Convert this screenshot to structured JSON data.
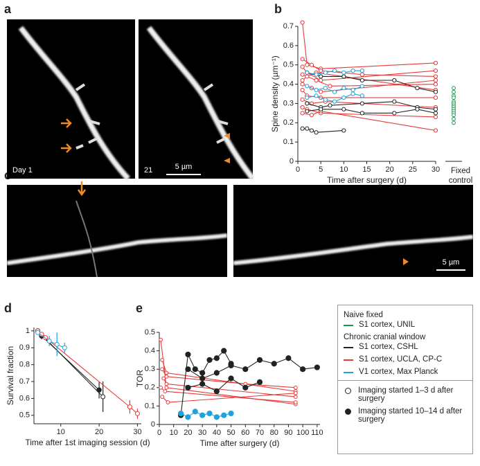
{
  "figure": {
    "panel_letters": [
      "a",
      "b",
      "c",
      "d",
      "e"
    ],
    "panel_a": {
      "left_label": "Day 1",
      "right_label": "21",
      "scale_bar": "5 µm"
    },
    "panel_c": {
      "scale_bar": "5 µm"
    },
    "legend": {
      "group_1": "Naive fixed",
      "entry_1": "S1 cortex, UNIL",
      "group_2": "Chronic cranial window",
      "entry_2": "S1 cortex, CSHL",
      "entry_3": "S1 cortex, UCLA, CP-C",
      "entry_4": "V1 cortex, Max Planck",
      "open_marker": "Imaging started 1–3 d after surgery",
      "filled_marker": "Imaging started 10–14 d after surgery",
      "colors": [
        "#1a9850",
        "#222222",
        "#e8393a",
        "#1fa3d9"
      ]
    }
  },
  "chart_data": [
    {
      "type": "line",
      "xlabel": "Time after surgery (d)",
      "ylabel": "Spine density (µm⁻¹)",
      "xlim": [
        0,
        30
      ],
      "ylim": [
        0,
        0.7
      ],
      "xticks": [
        0,
        5,
        10,
        15,
        20,
        25,
        30
      ],
      "yticks": [
        0,
        0.1,
        0.2,
        0.3,
        0.4,
        0.5,
        0.6,
        0.7
      ],
      "series": [
        {
          "color": "#e8393a",
          "filled": false,
          "x": [
            1,
            2,
            5,
            30
          ],
          "values": [
            0.72,
            0.5,
            0.48,
            0.51
          ]
        },
        {
          "color": "#e8393a",
          "filled": false,
          "x": [
            1,
            3,
            5,
            14,
            30
          ],
          "values": [
            0.53,
            0.5,
            0.47,
            0.45,
            0.44
          ]
        },
        {
          "color": "#e8393a",
          "filled": false,
          "x": [
            1,
            2,
            5,
            30
          ],
          "values": [
            0.49,
            0.46,
            0.42,
            0.47
          ]
        },
        {
          "color": "#e8393a",
          "filled": false,
          "x": [
            1,
            4,
            7,
            30
          ],
          "values": [
            0.45,
            0.42,
            0.39,
            0.4
          ]
        },
        {
          "color": "#e8393a",
          "filled": false,
          "x": [
            1,
            3,
            5,
            30
          ],
          "values": [
            0.4,
            0.38,
            0.36,
            0.42
          ]
        },
        {
          "color": "#e8393a",
          "filled": false,
          "x": [
            1,
            2,
            5,
            30
          ],
          "values": [
            0.37,
            0.34,
            0.33,
            0.33
          ]
        },
        {
          "color": "#e8393a",
          "filled": false,
          "x": [
            1,
            3,
            6,
            30
          ],
          "values": [
            0.32,
            0.3,
            0.31,
            0.28
          ]
        },
        {
          "color": "#e8393a",
          "filled": false,
          "x": [
            1,
            2,
            5,
            30
          ],
          "values": [
            0.28,
            0.27,
            0.25,
            0.23
          ]
        },
        {
          "color": "#e8393a",
          "filled": false,
          "x": [
            1,
            3,
            5,
            30
          ],
          "values": [
            0.25,
            0.24,
            0.26,
            0.16
          ]
        },
        {
          "color": "#e8393a",
          "filled": false,
          "x": [
            1,
            2,
            4,
            30
          ],
          "values": [
            0.42,
            0.44,
            0.46,
            0.37
          ]
        },
        {
          "color": "#222222",
          "filled": false,
          "x": [
            1,
            2,
            3,
            4,
            10
          ],
          "values": [
            0.17,
            0.17,
            0.16,
            0.15,
            0.16
          ]
        },
        {
          "color": "#222222",
          "filled": false,
          "x": [
            2,
            5,
            10,
            14,
            21,
            26,
            30
          ],
          "values": [
            0.46,
            0.44,
            0.44,
            0.42,
            0.42,
            0.38,
            0.36
          ]
        },
        {
          "color": "#222222",
          "filled": false,
          "x": [
            2,
            5,
            7,
            14,
            21,
            26,
            30
          ],
          "values": [
            0.3,
            0.28,
            0.29,
            0.3,
            0.31,
            0.28,
            0.27
          ]
        },
        {
          "color": "#222222",
          "filled": false,
          "x": [
            2,
            5,
            10,
            14,
            21,
            26,
            30
          ],
          "values": [
            0.26,
            0.27,
            0.27,
            0.25,
            0.25,
            0.27,
            0.25
          ]
        },
        {
          "color": "#1fa3d9",
          "filled": false,
          "x": [
            2,
            4,
            6,
            8,
            10,
            12,
            14
          ],
          "values": [
            0.46,
            0.45,
            0.46,
            0.47,
            0.46,
            0.47,
            0.47
          ]
        },
        {
          "color": "#1fa3d9",
          "filled": false,
          "x": [
            2,
            4,
            6,
            8,
            10,
            12,
            14
          ],
          "values": [
            0.39,
            0.37,
            0.38,
            0.36,
            0.38,
            0.37,
            0.39
          ]
        },
        {
          "color": "#1fa3d9",
          "filled": false,
          "x": [
            2,
            4,
            6,
            8,
            10,
            12,
            14
          ],
          "values": [
            0.33,
            0.34,
            0.32,
            0.31,
            0.33,
            0.35,
            0.34
          ]
        }
      ],
      "control": {
        "label": "Fixed control",
        "color": "#1a9850",
        "values": [
          0.38,
          0.36,
          0.34,
          0.33,
          0.31,
          0.3,
          0.29,
          0.28,
          0.27,
          0.26,
          0.25,
          0.24,
          0.22,
          0.2
        ]
      }
    },
    {
      "type": "line",
      "xlabel": "Time after 1st imaging session (d)",
      "ylabel": "Survival fraction",
      "xlim": [
        3,
        31
      ],
      "ylim": [
        0.45,
        1.02
      ],
      "xticks": [
        10,
        20,
        30
      ],
      "yticks": [
        0.5,
        0.6,
        0.7,
        0.8,
        0.9,
        1
      ],
      "series": [
        {
          "color": "#222222",
          "filled": true,
          "x": [
            4,
            5,
            20
          ],
          "values": [
            1,
            0.97,
            0.65
          ],
          "errors": [
            0.01,
            0.02,
            0.05
          ]
        },
        {
          "color": "#222222",
          "filled": false,
          "x": [
            4,
            21
          ],
          "values": [
            1,
            0.61
          ],
          "errors": [
            0.01,
            0.09
          ]
        },
        {
          "color": "#e8393a",
          "filled": false,
          "x": [
            4,
            5,
            6,
            28,
            30
          ],
          "values": [
            1,
            0.98,
            0.96,
            0.55,
            0.51
          ],
          "errors": [
            0.01,
            0.01,
            0.01,
            0.04,
            0.03
          ]
        },
        {
          "color": "#1fa3d9",
          "filled": false,
          "x": [
            4,
            7,
            9,
            11
          ],
          "values": [
            0.99,
            0.94,
            0.92,
            0.9
          ],
          "errors": [
            0.01,
            0.03,
            0.07,
            0.03
          ]
        }
      ]
    },
    {
      "type": "line",
      "xlabel": "Time after surgery (d)",
      "ylabel": "TOR",
      "xlim": [
        0,
        112
      ],
      "ylim": [
        0,
        0.5
      ],
      "xticks": [
        0,
        10,
        20,
        30,
        40,
        50,
        60,
        70,
        80,
        90,
        100,
        110
      ],
      "yticks": [
        0,
        0.1,
        0.2,
        0.3,
        0.4,
        0.5
      ],
      "series": [
        {
          "color": "#e8393a",
          "filled": false,
          "x": [
            1,
            5,
            95
          ],
          "values": [
            0.46,
            0.2,
            0.11
          ]
        },
        {
          "color": "#e8393a",
          "filled": false,
          "x": [
            2,
            5,
            95
          ],
          "values": [
            0.35,
            0.28,
            0.18
          ]
        },
        {
          "color": "#e8393a",
          "filled": false,
          "x": [
            3,
            5,
            95
          ],
          "values": [
            0.25,
            0.22,
            0.15
          ]
        },
        {
          "color": "#e8393a",
          "filled": false,
          "x": [
            1,
            4,
            95
          ],
          "values": [
            0.2,
            0.18,
            0.12
          ]
        },
        {
          "color": "#e8393a",
          "filled": false,
          "x": [
            2,
            6,
            95
          ],
          "values": [
            0.15,
            0.12,
            0.17
          ]
        },
        {
          "color": "#e8393a",
          "filled": false,
          "x": [
            2,
            5,
            60,
            95
          ],
          "values": [
            0.3,
            0.26,
            0.22,
            0.2
          ]
        },
        {
          "color": "#222222",
          "filled": true,
          "x": [
            15,
            20,
            25,
            30,
            35,
            40,
            45,
            50
          ],
          "values": [
            0.05,
            0.38,
            0.3,
            0.28,
            0.35,
            0.36,
            0.4,
            0.33
          ]
        },
        {
          "color": "#222222",
          "filled": true,
          "x": [
            20,
            30,
            40,
            50,
            60,
            70,
            80,
            90,
            100,
            110
          ],
          "values": [
            0.3,
            0.25,
            0.28,
            0.32,
            0.3,
            0.35,
            0.33,
            0.36,
            0.3,
            0.31
          ]
        },
        {
          "color": "#222222",
          "filled": true,
          "x": [
            20,
            30,
            40,
            50,
            60,
            70
          ],
          "values": [
            0.2,
            0.22,
            0.18,
            0.25,
            0.2,
            0.23
          ]
        },
        {
          "color": "#1fa3d9",
          "filled": true,
          "x": [
            15,
            20,
            25,
            30,
            35,
            40,
            45,
            50
          ],
          "values": [
            0.06,
            0.04,
            0.07,
            0.05,
            0.06,
            0.04,
            0.05,
            0.06
          ]
        }
      ]
    }
  ]
}
